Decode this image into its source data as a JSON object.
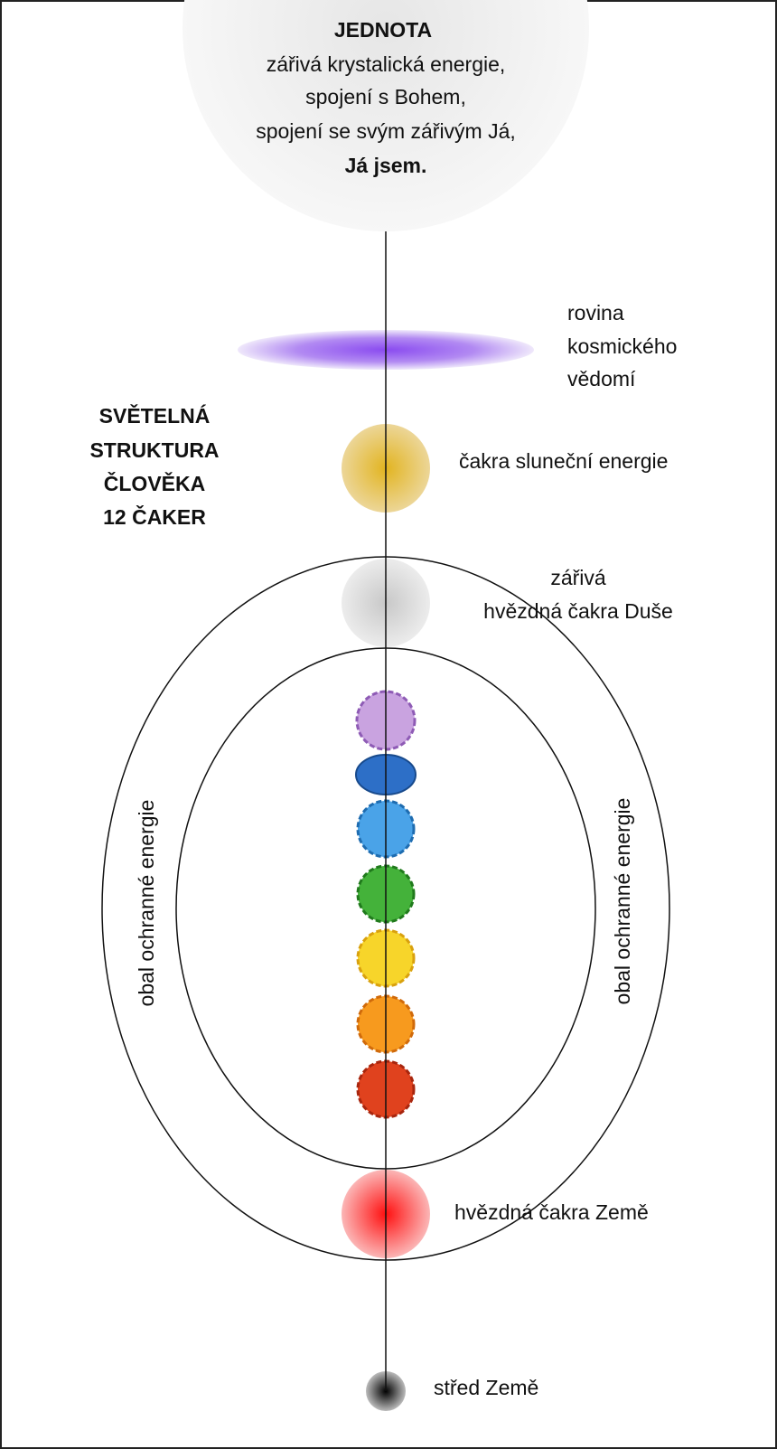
{
  "header": {
    "title": "JEDNOTA",
    "lines": [
      "zářivá krystalická energie,",
      "spojení s Bohem,",
      "spojení se svým zářivým Já,"
    ],
    "closing": "Já jsem."
  },
  "side_title": [
    "SVĚTELNÁ",
    "STRUKTURA",
    "ČLOVĚKA",
    "12 ČAKER"
  ],
  "labels": {
    "cosmic_plane": [
      "rovina",
      "kosmického",
      "vědomí"
    ],
    "solar_chakra": "čakra sluneční energie",
    "soul_star": [
      "zářivá",
      "hvězdná čakra Duše"
    ],
    "protective_left": "obal ochranné energie",
    "protective_right": "obal ochranné energie",
    "earth_star": "hvězdná čakra Země",
    "earth_center": "střed Země"
  }
}
